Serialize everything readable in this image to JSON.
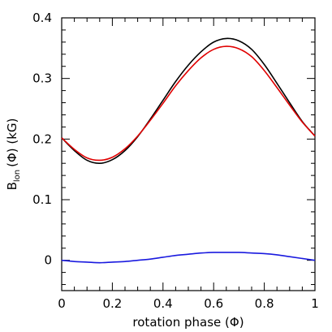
{
  "chart_data": {
    "type": "line",
    "title": "",
    "xlabel": "rotation phase (Φ)",
    "ylabel": {
      "main": "B",
      "sub": "lon",
      "rest": "(Φ) (kG)"
    },
    "xlim": [
      0,
      1
    ],
    "ylim": [
      -0.05,
      0.4
    ],
    "x_ticks": {
      "major": [
        0,
        0.2,
        0.4,
        0.6,
        0.8,
        1
      ],
      "labels": [
        "0",
        "0.2",
        "0.4",
        "0.6",
        "0.8",
        "1"
      ],
      "minor_step": 0.05
    },
    "y_ticks": {
      "major": [
        0,
        0.1,
        0.2,
        0.3,
        0.4
      ],
      "labels": [
        "0",
        "0.1",
        "0.2",
        "0.3",
        "0.4"
      ],
      "minor_step": 0.02
    },
    "grid": false,
    "series": [
      {
        "color": "#000000",
        "x": [
          0,
          0.05,
          0.1,
          0.15,
          0.2,
          0.25,
          0.3,
          0.35,
          0.4,
          0.45,
          0.5,
          0.55,
          0.6,
          0.65,
          0.7,
          0.75,
          0.8,
          0.85,
          0.9,
          0.95,
          1
        ],
        "values": [
          0.202,
          0.181,
          0.165,
          0.16,
          0.166,
          0.181,
          0.204,
          0.233,
          0.264,
          0.295,
          0.322,
          0.344,
          0.36,
          0.366,
          0.362,
          0.348,
          0.323,
          0.292,
          0.26,
          0.229,
          0.205
        ]
      },
      {
        "color": "#e00000",
        "x": [
          0,
          0.05,
          0.1,
          0.15,
          0.2,
          0.25,
          0.3,
          0.35,
          0.4,
          0.45,
          0.5,
          0.55,
          0.6,
          0.65,
          0.7,
          0.75,
          0.8,
          0.85,
          0.9,
          0.95,
          1
        ],
        "values": [
          0.202,
          0.183,
          0.169,
          0.165,
          0.17,
          0.184,
          0.205,
          0.231,
          0.259,
          0.288,
          0.313,
          0.334,
          0.348,
          0.353,
          0.349,
          0.336,
          0.313,
          0.285,
          0.256,
          0.228,
          0.205
        ]
      },
      {
        "color": "#1a1adf",
        "x": [
          0,
          0.05,
          0.1,
          0.15,
          0.2,
          0.25,
          0.3,
          0.35,
          0.4,
          0.45,
          0.5,
          0.55,
          0.6,
          0.65,
          0.7,
          0.75,
          0.8,
          0.85,
          0.9,
          0.95,
          1
        ],
        "values": [
          0.0,
          -0.002,
          -0.003,
          -0.004,
          -0.003,
          -0.002,
          0.0,
          0.002,
          0.005,
          0.008,
          0.01,
          0.012,
          0.013,
          0.013,
          0.013,
          0.012,
          0.011,
          0.009,
          0.006,
          0.003,
          0.0
        ]
      }
    ]
  }
}
